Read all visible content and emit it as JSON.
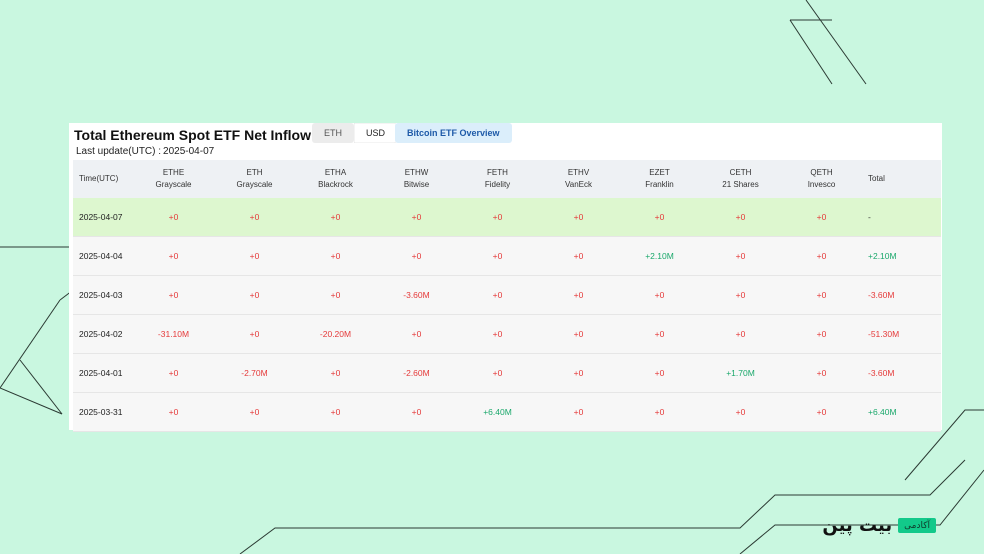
{
  "header": {
    "title": "Total Ethereum Spot ETF Net Inflow USD",
    "tabs": [
      {
        "label": "ETH",
        "active": false
      },
      {
        "label": "USD",
        "active": true
      }
    ],
    "overview_button": "Bitcoin ETF Overview",
    "last_update_label": "Last update(UTC) :",
    "last_update_value": "2025-04-07"
  },
  "table": {
    "columns": [
      {
        "code": "Time(UTC)",
        "name": ""
      },
      {
        "code": "ETHE",
        "name": "Grayscale"
      },
      {
        "code": "ETH",
        "name": "Grayscale"
      },
      {
        "code": "ETHA",
        "name": "Blackrock"
      },
      {
        "code": "ETHW",
        "name": "Bitwise"
      },
      {
        "code": "FETH",
        "name": "Fidelity"
      },
      {
        "code": "ETHV",
        "name": "VanEck"
      },
      {
        "code": "EZET",
        "name": "Franklin"
      },
      {
        "code": "CETH",
        "name": "21 Shares"
      },
      {
        "code": "QETH",
        "name": "Invesco"
      },
      {
        "code": "Total",
        "name": ""
      }
    ],
    "rows": [
      {
        "date": "2025-04-07",
        "values": [
          "+0",
          "+0",
          "+0",
          "+0",
          "+0",
          "+0",
          "+0",
          "+0",
          "+0",
          "-"
        ]
      },
      {
        "date": "2025-04-04",
        "values": [
          "+0",
          "+0",
          "+0",
          "+0",
          "+0",
          "+0",
          "+2.10M",
          "+0",
          "+0",
          "+2.10M"
        ]
      },
      {
        "date": "2025-04-03",
        "values": [
          "+0",
          "+0",
          "+0",
          "-3.60M",
          "+0",
          "+0",
          "+0",
          "+0",
          "+0",
          "-3.60M"
        ]
      },
      {
        "date": "2025-04-02",
        "values": [
          "-31.10M",
          "+0",
          "-20.20M",
          "+0",
          "+0",
          "+0",
          "+0",
          "+0",
          "+0",
          "-51.30M"
        ]
      },
      {
        "date": "2025-04-01",
        "values": [
          "+0",
          "-2.70M",
          "+0",
          "-2.60M",
          "+0",
          "+0",
          "+0",
          "+1.70M",
          "+0",
          "-3.60M"
        ]
      },
      {
        "date": "2025-03-31",
        "values": [
          "+0",
          "+0",
          "+0",
          "+0",
          "+6.40M",
          "+0",
          "+0",
          "+0",
          "+0",
          "+6.40M"
        ]
      }
    ]
  },
  "brand": {
    "badge": "آکادمی",
    "name": "بیت پین"
  },
  "colors": {
    "background": "#c9f7e0",
    "negative": "#e53a3a",
    "positive": "#1aa86b",
    "highlight_row": "#ddf7cf",
    "overview_button": "#dbeefb"
  }
}
